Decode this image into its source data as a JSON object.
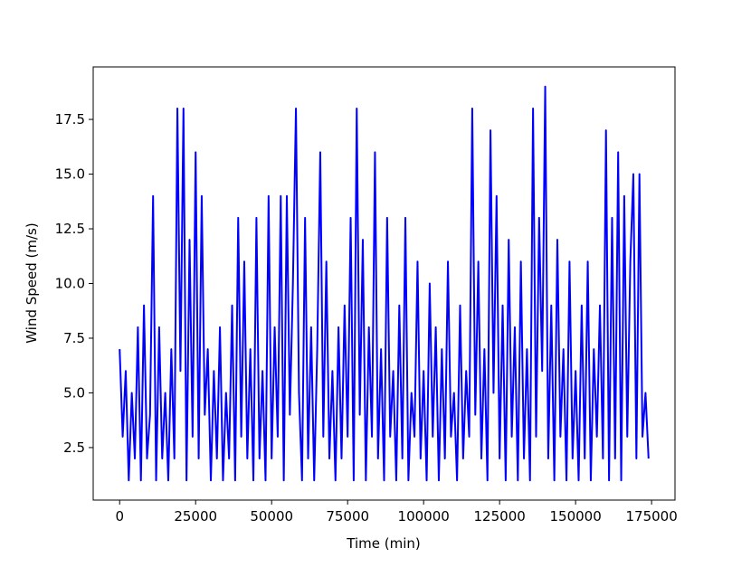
{
  "chart_data": {
    "type": "line",
    "xlabel": "Time (min)",
    "ylabel": "Wind Speed (m/s)",
    "x": [
      0,
      1000,
      2000,
      3000,
      4000,
      5000,
      6000,
      7000,
      8000,
      9000,
      10000,
      11000,
      12000,
      13000,
      14000,
      15000,
      16000,
      17000,
      18000,
      19000,
      20000,
      21000,
      22000,
      23000,
      24000,
      25000,
      26000,
      27000,
      28000,
      29000,
      30000,
      31000,
      32000,
      33000,
      34000,
      35000,
      36000,
      37000,
      38000,
      39000,
      40000,
      41000,
      42000,
      43000,
      44000,
      45000,
      46000,
      47000,
      48000,
      49000,
      50000,
      51000,
      52000,
      53000,
      54000,
      55000,
      56000,
      57000,
      58000,
      59000,
      60000,
      61000,
      62000,
      63000,
      64000,
      65000,
      66000,
      67000,
      68000,
      69000,
      70000,
      71000,
      72000,
      73000,
      74000,
      75000,
      76000,
      77000,
      78000,
      79000,
      80000,
      81000,
      82000,
      83000,
      84000,
      85000,
      86000,
      87000,
      88000,
      89000,
      90000,
      91000,
      92000,
      93000,
      94000,
      95000,
      96000,
      97000,
      98000,
      99000,
      100000,
      101000,
      102000,
      103000,
      104000,
      105000,
      106000,
      107000,
      108000,
      109000,
      110000,
      111000,
      112000,
      113000,
      114000,
      115000,
      116000,
      117000,
      118000,
      119000,
      120000,
      121000,
      122000,
      123000,
      124000,
      125000,
      126000,
      127000,
      128000,
      129000,
      130000,
      131000,
      132000,
      133000,
      134000,
      135000,
      136000,
      137000,
      138000,
      139000,
      140000,
      141000,
      142000,
      143000,
      144000,
      145000,
      146000,
      147000,
      148000,
      149000,
      150000,
      151000,
      152000,
      153000,
      154000,
      155000,
      156000,
      157000,
      158000,
      159000,
      160000,
      161000,
      162000,
      163000,
      164000,
      165000,
      166000,
      167000,
      168000,
      169000,
      170000,
      171000,
      172000,
      173000,
      174000
    ],
    "series": [
      {
        "name": "Wind Speed",
        "color": "#0000ff",
        "values": [
          7,
          3,
          6,
          1,
          5,
          2,
          8,
          1,
          9,
          2,
          4,
          14,
          1,
          8,
          2,
          5,
          1,
          7,
          2,
          18,
          6,
          18,
          1,
          12,
          3,
          16,
          2,
          14,
          4,
          7,
          1,
          6,
          2,
          8,
          1,
          5,
          2,
          9,
          1,
          13,
          3,
          11,
          2,
          7,
          1,
          13,
          2,
          6,
          1,
          14,
          2,
          8,
          3,
          14,
          1,
          14,
          4,
          10,
          18,
          5,
          1,
          13,
          2,
          8,
          1,
          7,
          16,
          3,
          11,
          2,
          6,
          1,
          8,
          2,
          9,
          3,
          13,
          1,
          18,
          4,
          12,
          1,
          8,
          3,
          16,
          2,
          7,
          1,
          13,
          3,
          6,
          1,
          9,
          2,
          13,
          1,
          5,
          3,
          11,
          2,
          6,
          1,
          10,
          3,
          8,
          1,
          7,
          2,
          11,
          3,
          5,
          1,
          9,
          2,
          6,
          3,
          18,
          4,
          11,
          2,
          7,
          1,
          17,
          5,
          14,
          2,
          9,
          1,
          12,
          3,
          8,
          1,
          11,
          2,
          7,
          1,
          18,
          3,
          13,
          6,
          19,
          2,
          9,
          1,
          12,
          3,
          7,
          1,
          11,
          2,
          6,
          1,
          9,
          2,
          11,
          1,
          7,
          3,
          9,
          2,
          17,
          1,
          13,
          2,
          16,
          1,
          14,
          3,
          11,
          15,
          2,
          15,
          3,
          5,
          2
        ]
      }
    ],
    "xlim": [
      -8700,
      182700
    ],
    "ylim": [
      0.1,
      19.9
    ],
    "xticks": [
      0,
      25000,
      50000,
      75000,
      100000,
      125000,
      150000,
      175000
    ],
    "yticks": [
      2.5,
      {
        "value": 5,
        "label": "5.0"
      },
      7.5,
      {
        "value": 10,
        "label": "10.0"
      },
      12.5,
      {
        "value": 15,
        "label": "15.0"
      },
      17.5
    ]
  }
}
